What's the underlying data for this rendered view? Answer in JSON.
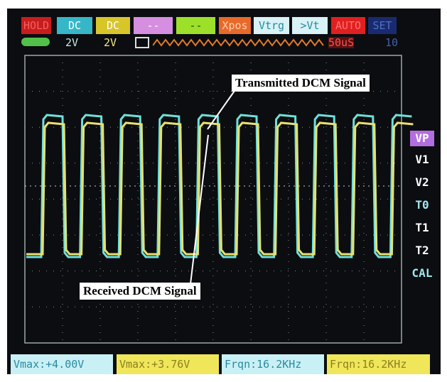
{
  "top_bar": {
    "row1": [
      "HOLD",
      "DC",
      "DC",
      "--",
      "--",
      "Xpos",
      "Vtrg",
      ">Vt",
      "AUTO",
      "SET"
    ],
    "row2": [
      "2V",
      "2V",
      "50uS",
      "10"
    ]
  },
  "side_menu": [
    "VP",
    "V1",
    "V2",
    "T0",
    "T1",
    "T2",
    "CAL"
  ],
  "measurements": [
    "Vmax:+4.00V",
    "Vmax:+3.76V",
    "Frqn:16.2KHz",
    "Frqn:16.2KHz"
  ],
  "annotations": {
    "transmitted": "Transmitted DCM Signal",
    "received": "Received DCM Signal"
  }
}
